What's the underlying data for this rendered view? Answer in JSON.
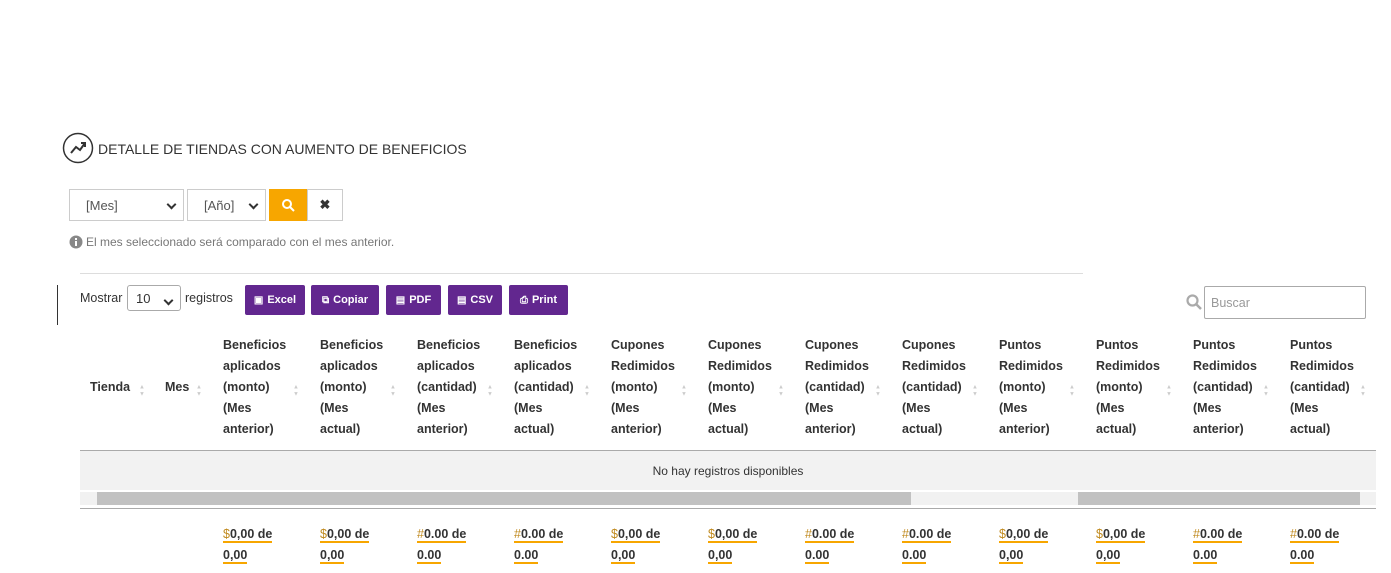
{
  "header": {
    "title": "DETALLE DE TIENDAS CON AUMENTO DE BENEFICIOS"
  },
  "filters": {
    "month": "[Mes]",
    "year": "[Año]",
    "note": "El mes seleccionado será comparado con el mes anterior."
  },
  "toolbar": {
    "show_prefix": "Mostrar",
    "page_size": "10",
    "show_suffix": "registros",
    "buttons": [
      "Excel",
      "Copiar",
      "PDF",
      "CSV",
      "Print"
    ],
    "search_placeholder": "Buscar"
  },
  "table": {
    "columns": [
      "Tienda",
      "Mes",
      "Beneficios aplicados (monto) (Mes anterior)",
      "Beneficios aplicados (monto) (Mes actual)",
      "Beneficios aplicados (cantidad) (Mes anterior)",
      "Beneficios aplicados (cantidad) (Mes actual)",
      "Cupones Redimidos (monto) (Mes anterior)",
      "Cupones Redimidos (monto) (Mes actual)",
      "Cupones Redimidos (cantidad) (Mes anterior)",
      "Cupones Redimidos (cantidad) (Mes actual)",
      "Puntos Redimidos (monto) (Mes anterior)",
      "Puntos Redimidos (monto) (Mes actual)",
      "Puntos Redimidos (cantidad) (Mes anterior)",
      "Puntos Redimidos (cantidad) (Mes actual)"
    ],
    "empty": "No hay registros disponibles",
    "footer": [
      {
        "symbol": "$",
        "text": "0,00 de 0,00"
      },
      {
        "symbol": "$",
        "text": "0,00 de 0,00"
      },
      {
        "symbol": "#",
        "text": "0.00 de 0.00"
      },
      {
        "symbol": "#",
        "text": "0.00 de 0.00"
      },
      {
        "symbol": "$",
        "text": "0,00 de 0,00"
      },
      {
        "symbol": "$",
        "text": "0,00 de 0,00"
      },
      {
        "symbol": "#",
        "text": "0.00 de 0.00"
      },
      {
        "symbol": "#",
        "text": "0.00 de 0.00"
      },
      {
        "symbol": "$",
        "text": "0,00 de 0,00"
      },
      {
        "symbol": "$",
        "text": "0,00 de 0,00"
      },
      {
        "symbol": "#",
        "text": "0.00 de 0.00"
      },
      {
        "symbol": "#",
        "text": "0.00 de 0.00"
      }
    ]
  }
}
